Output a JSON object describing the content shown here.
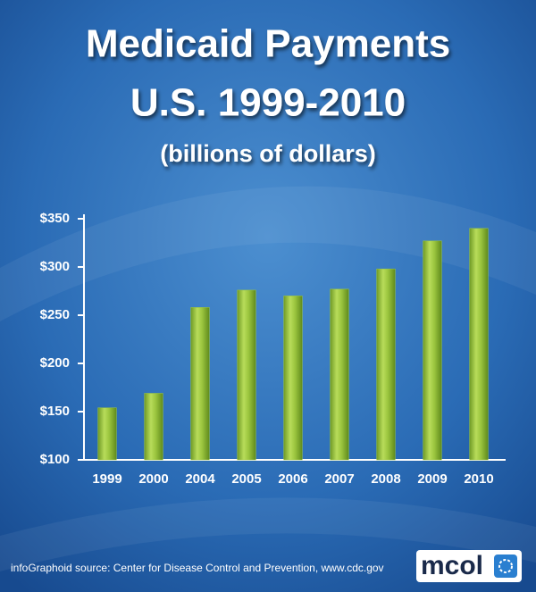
{
  "chart_data": {
    "type": "bar",
    "title": "Medicaid Payments",
    "subtitle": "U.S. 1999-2010",
    "unit_label": "(billions of dollars)",
    "categories": [
      "1999",
      "2000",
      "2004",
      "2005",
      "2006",
      "2007",
      "2008",
      "2009",
      "2010"
    ],
    "values": [
      154,
      169,
      258,
      276,
      270,
      277,
      298,
      327,
      340
    ],
    "color": "#9cc63f",
    "ylim": [
      100,
      350
    ],
    "yticks": [
      {
        "value": 100,
        "label": "$100"
      },
      {
        "value": 150,
        "label": "$150"
      },
      {
        "value": 200,
        "label": "$200"
      },
      {
        "value": 250,
        "label": "$250"
      },
      {
        "value": 300,
        "label": "$300"
      },
      {
        "value": 350,
        "label": "$350"
      }
    ],
    "grid": false,
    "source": "infoGraphoid source:   Center for Disease Control and Prevention,  www.cdc.gov",
    "logo": "mcol"
  }
}
